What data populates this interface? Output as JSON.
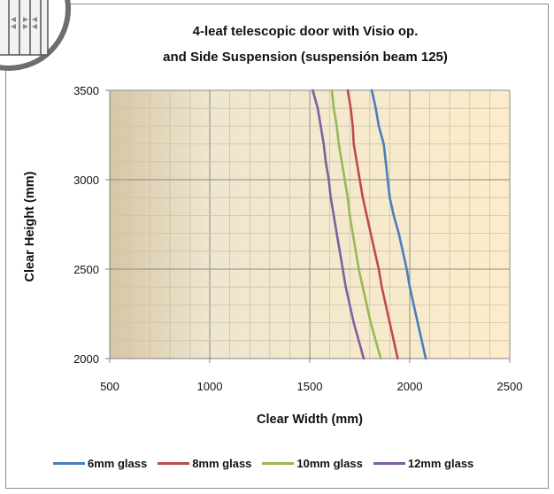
{
  "chart_data": {
    "type": "line",
    "title_line1": "4-leaf telescopic door with Visio op.",
    "title_line2": "and Side Suspension (suspensión beam 125)",
    "xlabel": "Clear Width (mm)",
    "ylabel": "Clear Height (mm)",
    "xlim": [
      500,
      2500
    ],
    "ylim": [
      2000,
      3500
    ],
    "x_ticks": [
      "500",
      "1000",
      "1500",
      "2000",
      "2500"
    ],
    "y_ticks": [
      "2000",
      "2500",
      "3000",
      "3500"
    ],
    "grid": true,
    "legend_position": "bottom",
    "series": [
      {
        "name": "6mm glass",
        "color": "#4a7ebb",
        "points": [
          [
            2080,
            2000
          ],
          [
            2060,
            2100
          ],
          [
            2040,
            2200
          ],
          [
            2020,
            2300
          ],
          [
            2000,
            2400
          ],
          [
            1985,
            2500
          ],
          [
            1965,
            2600
          ],
          [
            1945,
            2700
          ],
          [
            1920,
            2800
          ],
          [
            1900,
            2900
          ],
          [
            1890,
            3000
          ],
          [
            1880,
            3100
          ],
          [
            1870,
            3200
          ],
          [
            1845,
            3300
          ],
          [
            1830,
            3400
          ],
          [
            1810,
            3500
          ]
        ]
      },
      {
        "name": "8mm glass",
        "color": "#be4b48",
        "points": [
          [
            1940,
            2000
          ],
          [
            1920,
            2100
          ],
          [
            1900,
            2200
          ],
          [
            1880,
            2300
          ],
          [
            1860,
            2400
          ],
          [
            1845,
            2500
          ],
          [
            1825,
            2600
          ],
          [
            1805,
            2700
          ],
          [
            1785,
            2800
          ],
          [
            1765,
            2900
          ],
          [
            1750,
            3000
          ],
          [
            1735,
            3100
          ],
          [
            1720,
            3200
          ],
          [
            1715,
            3300
          ],
          [
            1705,
            3400
          ],
          [
            1690,
            3500
          ]
        ]
      },
      {
        "name": "10mm glass",
        "color": "#98b954",
        "points": [
          [
            1855,
            2000
          ],
          [
            1830,
            2100
          ],
          [
            1805,
            2200
          ],
          [
            1785,
            2300
          ],
          [
            1765,
            2400
          ],
          [
            1745,
            2500
          ],
          [
            1730,
            2600
          ],
          [
            1715,
            2700
          ],
          [
            1700,
            2800
          ],
          [
            1690,
            2900
          ],
          [
            1675,
            3000
          ],
          [
            1660,
            3100
          ],
          [
            1645,
            3200
          ],
          [
            1635,
            3300
          ],
          [
            1620,
            3400
          ],
          [
            1610,
            3500
          ]
        ]
      },
      {
        "name": "12mm glass",
        "color": "#7d60a0",
        "points": [
          [
            1770,
            2000
          ],
          [
            1745,
            2100
          ],
          [
            1720,
            2200
          ],
          [
            1700,
            2300
          ],
          [
            1680,
            2400
          ],
          [
            1665,
            2500
          ],
          [
            1650,
            2600
          ],
          [
            1635,
            2700
          ],
          [
            1620,
            2800
          ],
          [
            1605,
            2900
          ],
          [
            1595,
            3000
          ],
          [
            1580,
            3100
          ],
          [
            1570,
            3200
          ],
          [
            1555,
            3300
          ],
          [
            1540,
            3400
          ],
          [
            1515,
            3500
          ]
        ]
      }
    ]
  }
}
